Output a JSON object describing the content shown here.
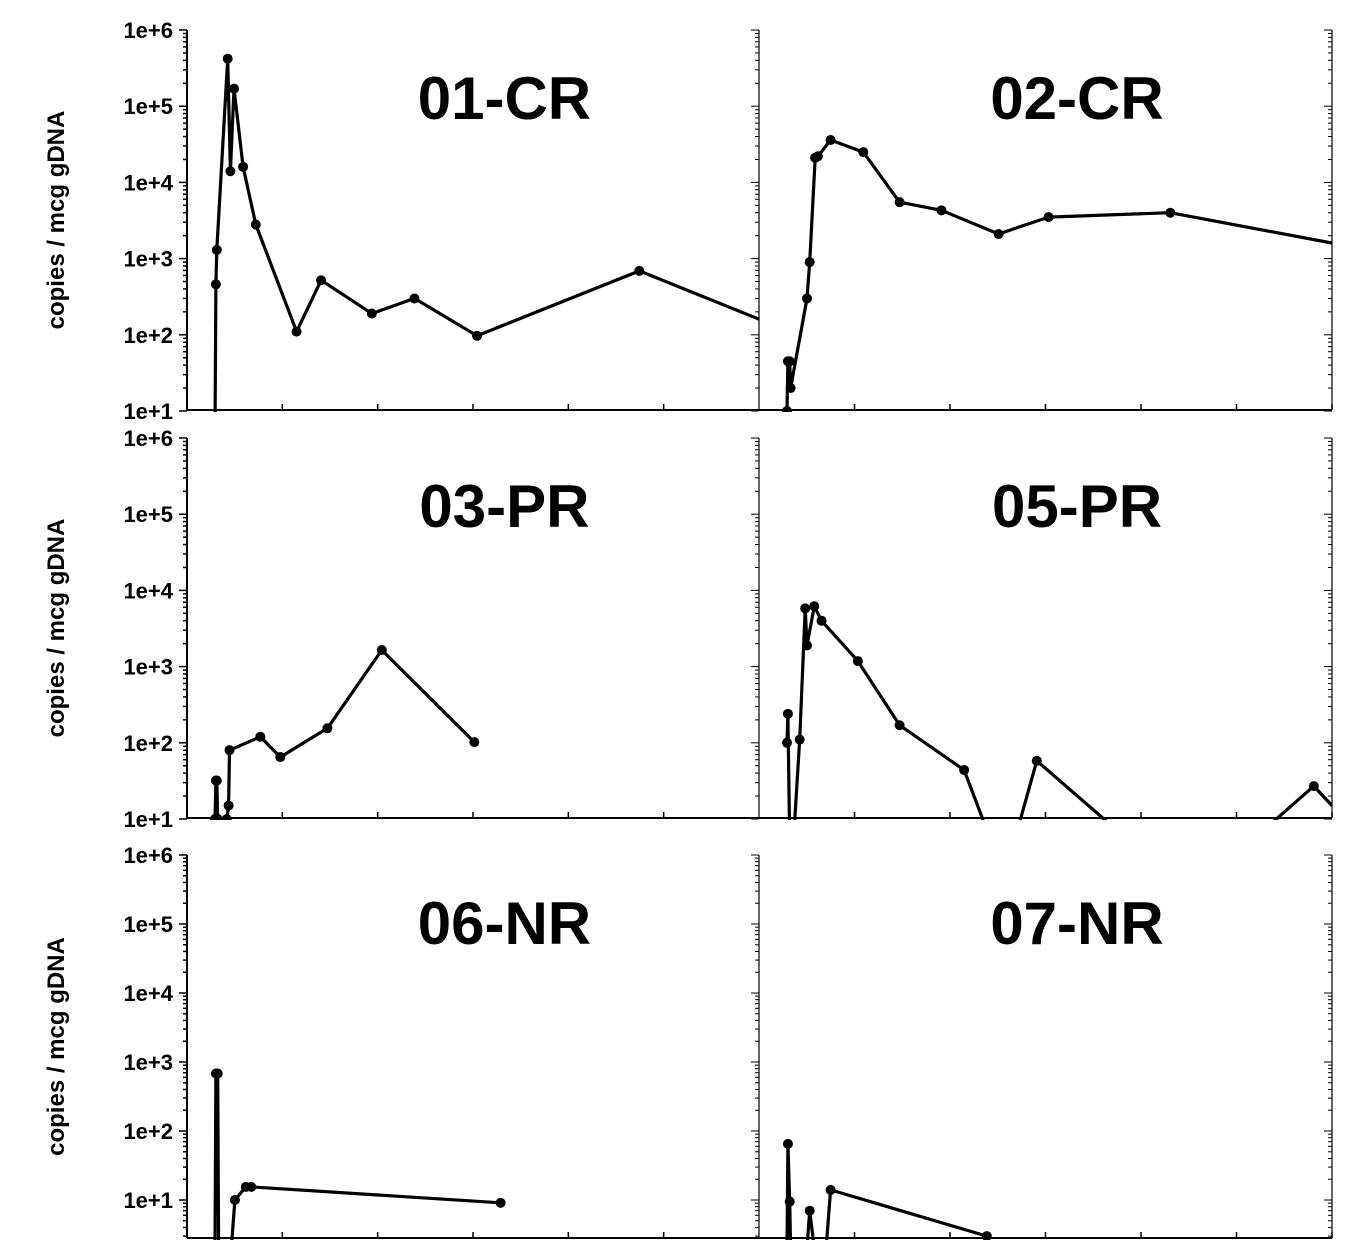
{
  "chart_data": {
    "type": "line",
    "scale": "log",
    "grid": false,
    "legend": "none",
    "ylabel": "copies / mcg gDNA",
    "ytick_labels": [
      "1e+1",
      "1e+2",
      "1e+3",
      "1e+4",
      "1e+5",
      "1e+6"
    ],
    "line_color": "#000000",
    "panels": [
      {
        "title": "01-CR",
        "ylim": [
          10,
          1000000
        ],
        "xlim": [
          0,
          600
        ],
        "x": [
          0,
          1,
          2,
          14,
          17,
          21,
          31,
          45,
          90,
          117,
          173,
          220,
          289,
          468,
          600
        ],
        "y": [
          5,
          460,
          1300,
          420000,
          14000,
          170000,
          16000,
          2800,
          110,
          520,
          190,
          300,
          97,
          690,
          160
        ]
      },
      {
        "title": "02-CR",
        "ylim": [
          10,
          1000000
        ],
        "xlim": [
          0,
          600
        ],
        "x": [
          0,
          1,
          3,
          4,
          22,
          25,
          31,
          34,
          48,
          84,
          124,
          170,
          233,
          288,
          422,
          600
        ],
        "y": [
          10,
          45,
          45,
          20,
          300,
          900,
          21000,
          22000,
          36000,
          25000,
          5500,
          4300,
          2100,
          3500,
          4000,
          1600
        ]
      },
      {
        "title": "03-PR",
        "ylim": [
          10,
          1000000
        ],
        "xlim": [
          0,
          600
        ],
        "x": [
          0,
          1,
          2,
          3,
          13,
          15,
          16,
          50,
          72,
          124,
          184,
          286
        ],
        "y": [
          10,
          32,
          32,
          10,
          10,
          15,
          80,
          120,
          65,
          155,
          1650,
          102
        ]
      },
      {
        "title": "05-PR",
        "ylim": [
          10,
          1000000
        ],
        "xlim": [
          0,
          600
        ],
        "x": [
          0,
          1,
          3,
          5,
          14,
          20,
          22,
          30,
          38,
          78,
          124,
          195,
          225,
          250,
          275,
          378,
          510,
          580,
          600
        ],
        "y": [
          100,
          240,
          5,
          2,
          110,
          5800,
          1900,
          6200,
          4000,
          1180,
          170,
          44,
          5,
          5,
          58,
          5,
          5,
          27,
          15
        ]
      },
      {
        "title": "06-NR",
        "ylim": [
          3,
          1000000
        ],
        "xlim": [
          0,
          600
        ],
        "x": [
          0,
          1,
          3,
          4,
          18,
          22,
          34,
          40,
          315
        ],
        "y": [
          2,
          680,
          680,
          2,
          2,
          10,
          15.5,
          15.5,
          9.1
        ]
      },
      {
        "title": "07-NR",
        "ylim": [
          3,
          1000000
        ],
        "xlim": [
          0,
          600
        ],
        "x": [
          0,
          1,
          3,
          4,
          22,
          25,
          30,
          43,
          48,
          220
        ],
        "y": [
          2,
          65,
          9.5,
          2,
          2,
          7,
          2,
          2,
          14,
          3
        ]
      }
    ]
  }
}
